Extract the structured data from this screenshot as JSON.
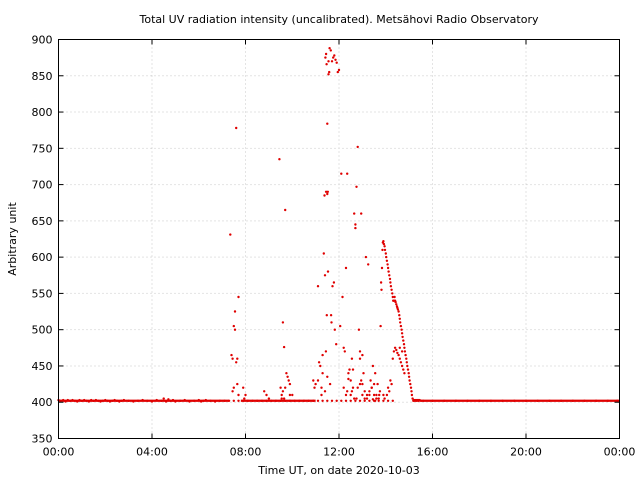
{
  "chart_data": {
    "type": "scatter",
    "title": "Total UV radiation intensity (uncalibrated). Metsähovi Radio Observatory",
    "xlabel": "Time UT, on date 2020-10-03",
    "ylabel": "Arbitrary unit",
    "xlim": [
      0,
      24
    ],
    "ylim": [
      350,
      900
    ],
    "x_ticks": [
      0,
      4,
      8,
      12,
      16,
      20,
      24
    ],
    "x_tick_labels": [
      "00:00",
      "04:00",
      "08:00",
      "12:00",
      "16:00",
      "20:00",
      "00:00"
    ],
    "y_ticks": [
      350,
      400,
      450,
      500,
      550,
      600,
      650,
      700,
      750,
      800,
      850,
      900
    ],
    "grid": true,
    "marker_color": "#e00000",
    "series": [
      {
        "x": [
          0.0,
          0.1,
          0.2,
          0.3,
          0.4,
          0.5,
          0.6,
          0.7,
          0.8,
          0.9,
          1.0,
          1.1,
          1.2,
          1.3,
          1.4,
          1.5,
          1.6,
          1.7,
          1.8,
          1.9,
          2.0,
          2.1,
          2.2,
          2.3,
          2.4,
          2.5,
          2.6,
          2.7,
          2.8,
          3.0,
          3.2,
          3.4,
          3.6,
          3.8,
          4.0,
          4.2,
          4.4,
          4.5,
          4.6,
          4.7,
          4.8,
          4.9,
          5.0,
          5.2,
          5.4,
          5.6,
          5.8,
          6.0,
          6.1,
          6.2,
          6.3,
          6.5,
          6.7,
          6.9,
          7.1,
          7.3,
          7.5,
          7.7,
          7.9,
          8.1,
          8.3,
          8.5,
          8.7,
          8.9,
          9.1,
          9.3,
          9.5,
          9.7,
          9.9,
          10.1,
          10.3,
          10.5,
          10.7,
          10.9,
          11.1,
          11.3,
          11.5,
          11.7,
          11.9,
          12.1,
          12.3,
          12.5,
          12.7,
          12.9,
          13.1,
          13.3,
          13.5,
          13.7,
          13.9,
          14.1,
          14.3,
          15.6,
          16.0,
          16.5,
          17.0,
          17.5,
          18.0,
          18.5,
          19.0,
          19.5,
          20.0,
          20.5,
          21.0,
          21.5,
          22.0,
          22.5,
          23.0,
          23.5,
          23.9,
          7.35,
          7.4,
          7.45,
          7.5,
          7.55,
          7.6,
          7.65,
          7.7,
          7.6,
          7.55,
          7.5,
          7.45,
          7.65,
          7.7,
          7.9,
          7.95,
          8.0,
          8.8,
          8.9,
          9.0,
          9.45,
          9.6,
          9.65,
          9.7,
          9.75,
          9.8,
          9.85,
          9.9,
          9.55,
          9.6,
          9.65,
          9.7,
          9.9,
          10.0,
          9.5,
          9.55,
          10.9,
          11.0,
          11.1,
          11.2,
          11.25,
          11.3,
          11.35,
          11.4,
          11.45,
          11.5,
          11.55,
          11.6,
          11.65,
          11.7,
          11.75,
          11.8,
          11.85,
          11.9,
          11.95,
          12.0,
          11.42,
          11.45,
          11.47,
          11.5,
          11.52,
          11.55,
          11.58,
          11.44,
          11.48,
          11.53,
          11.38,
          11.4,
          11.5,
          11.62,
          11.66,
          11.68,
          11.72,
          11.78,
          11.82,
          11.88,
          12.1,
          12.15,
          12.2,
          12.25,
          12.3,
          12.35,
          12.4,
          12.45,
          12.5,
          12.55,
          12.6,
          12.65,
          12.7,
          12.75,
          12.8,
          12.85,
          12.9,
          12.95,
          13.0,
          13.05,
          12.05,
          12.2,
          12.3,
          12.35,
          12.5,
          12.65,
          12.8,
          12.9,
          13.0,
          13.1,
          13.2,
          13.3,
          13.4,
          13.5,
          13.6,
          12.95,
          12.7,
          13.15,
          13.25,
          13.35,
          13.45,
          13.55,
          13.65,
          13.72,
          13.75,
          13.78,
          13.8,
          13.82,
          13.84,
          13.86,
          13.88,
          13.9,
          13.92,
          13.95,
          13.97,
          14.0,
          14.02,
          14.05,
          14.08,
          14.1,
          14.12,
          14.15,
          14.18,
          14.2,
          14.22,
          14.25,
          14.28,
          14.3,
          14.32,
          14.35,
          14.38,
          14.4,
          14.42,
          14.45,
          14.48,
          14.5,
          14.52,
          14.55,
          14.58,
          14.6,
          14.62,
          14.65,
          14.68,
          14.7,
          14.72,
          14.75,
          14.78,
          14.8,
          14.82,
          14.85,
          14.88,
          14.9,
          14.92,
          14.95,
          14.98,
          15.0,
          15.02,
          15.05,
          15.08,
          15.1,
          15.12,
          15.15,
          15.18,
          15.2,
          15.22,
          15.25,
          15.28,
          15.3,
          15.32,
          15.35,
          15.38,
          15.4,
          15.42,
          15.45,
          15.5,
          14.3,
          14.35,
          14.4,
          14.45,
          14.5,
          14.55,
          14.6,
          14.65,
          14.7,
          14.75,
          14.8,
          14.2,
          14.25,
          14.15,
          14.1,
          14.05,
          13.95,
          13.9,
          14.6,
          14.7,
          13.3,
          13.4,
          13.5,
          13.6,
          13.7,
          13.0,
          12.9,
          13.2,
          13.1,
          12.6,
          12.4,
          11.3,
          11.1,
          10.95,
          11.15,
          11.25,
          12.55,
          12.75,
          13.55,
          13.45
        ],
        "y": [
          403,
          402,
          403,
          401,
          403,
          402,
          403,
          402,
          401,
          403,
          402,
          403,
          402,
          401,
          403,
          402,
          403,
          402,
          401,
          402,
          403,
          402,
          401,
          402,
          403,
          402,
          401,
          402,
          403,
          402,
          401,
          402,
          403,
          402,
          401,
          403,
          402,
          405,
          401,
          404,
          402,
          403,
          401,
          402,
          403,
          401,
          402,
          403,
          401,
          402,
          403,
          402,
          401,
          402,
          402,
          402,
          402,
          402,
          402,
          402,
          402,
          402,
          402,
          402,
          402,
          402,
          402,
          402,
          402,
          402,
          402,
          402,
          402,
          402,
          402,
          402,
          402,
          402,
          402,
          402,
          402,
          402,
          402,
          402,
          402,
          402,
          402,
          402,
          402,
          402,
          402,
          402,
          402,
          402,
          402,
          402,
          402,
          402,
          402,
          402,
          402,
          402,
          402,
          402,
          402,
          402,
          402,
          402,
          402,
          631,
          465,
          460,
          505,
          500,
          778,
          460,
          545,
          455,
          525,
          420,
          415,
          425,
          410,
          420,
          405,
          410,
          415,
          410,
          405,
          735,
          510,
          476,
          665,
          440,
          435,
          430,
          410,
          410,
          415,
          405,
          420,
          425,
          410,
          420,
          405,
          430,
          425,
          560,
          450,
          420,
          465,
          605,
          415,
          690,
          784,
          852,
          888,
          885,
          870,
          875,
          878,
          872,
          868,
          855,
          858,
          875,
          880,
          866,
          687,
          690,
          870,
          855,
          470,
          520,
          580,
          685,
          575,
          435,
          425,
          520,
          510,
          560,
          565,
          500,
          480,
          715,
          545,
          475,
          470,
          585,
          715,
          440,
          445,
          430,
          460,
          420,
          660,
          640,
          697,
          752,
          500,
          470,
          430,
          425,
          440,
          505,
          420,
          410,
          415,
          410,
          405,
          420,
          425,
          410,
          415,
          405,
          410,
          420,
          410,
          405,
          660,
          645,
          600,
          590,
          430,
          450,
          440,
          425,
          410,
          415,
          505,
          565,
          555,
          585,
          610,
          620,
          622,
          618,
          615,
          610,
          605,
          600,
          595,
          590,
          585,
          580,
          575,
          570,
          565,
          560,
          555,
          550,
          545,
          540,
          540,
          545,
          540,
          538,
          535,
          532,
          530,
          528,
          525,
          520,
          515,
          510,
          505,
          500,
          495,
          490,
          485,
          480,
          475,
          470,
          465,
          460,
          455,
          450,
          445,
          440,
          435,
          430,
          425,
          420,
          415,
          410,
          405,
          402,
          403,
          402,
          403,
          402,
          403,
          402,
          403,
          402,
          403,
          402,
          403,
          402,
          460,
          470,
          475,
          472,
          468,
          465,
          460,
          455,
          450,
          445,
          440,
          430,
          425,
          415,
          420,
          410,
          405,
          410,
          475,
          470,
          415,
          420,
          425,
          410,
          405,
          465,
          460,
          410,
          405,
          445,
          432,
          440,
          430,
          420,
          455,
          410,
          415,
          405,
          402,
          404
        ]
      }
    ]
  }
}
